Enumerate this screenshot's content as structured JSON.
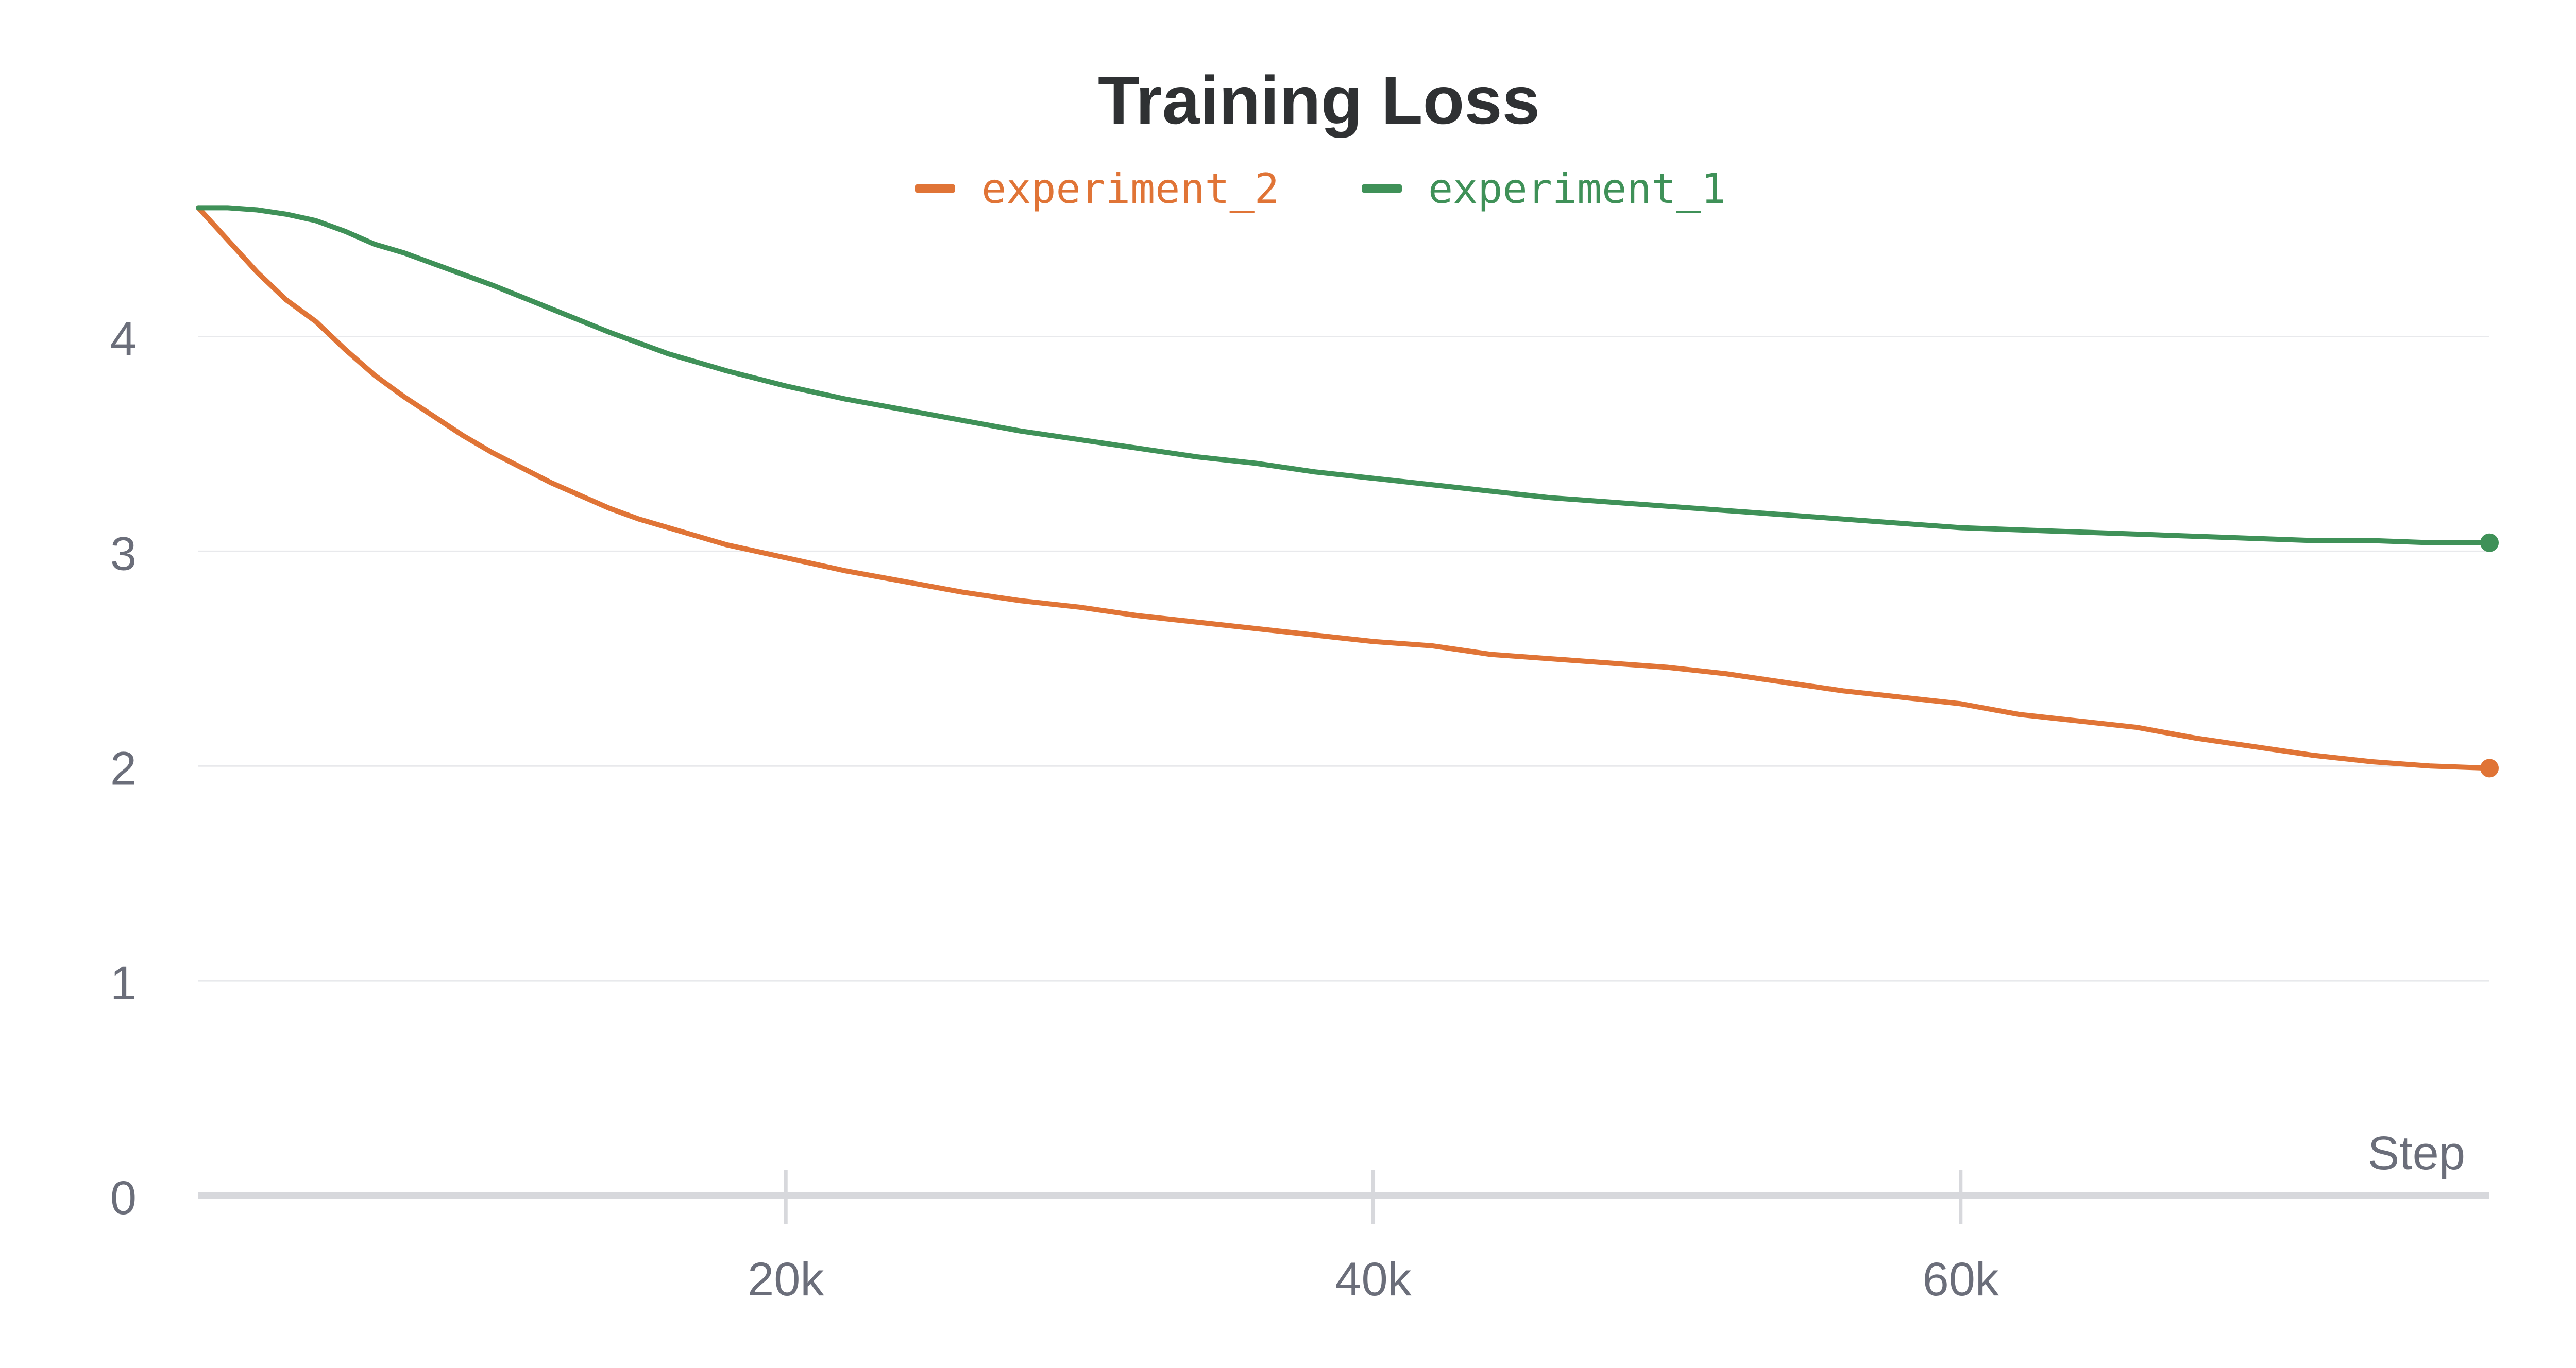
{
  "chart_data": {
    "type": "line",
    "title": "Training Loss",
    "xlabel": "Step",
    "ylabel": "",
    "xlim": [
      0,
      78000
    ],
    "ylim": [
      0,
      4.8
    ],
    "x_ticks": [
      20000,
      40000,
      60000
    ],
    "x_tick_labels": [
      "20k",
      "40k",
      "60k"
    ],
    "y_ticks": [
      0,
      1,
      2,
      3,
      4
    ],
    "y_tick_labels": [
      "0",
      "1",
      "2",
      "3",
      "4"
    ],
    "grid": true,
    "legend_position": "top-center",
    "series": [
      {
        "name": "experiment_2",
        "color": "#e07436",
        "x": [
          0,
          1000,
          2000,
          3000,
          4000,
          5000,
          6000,
          7000,
          8000,
          9000,
          10000,
          11000,
          12000,
          13000,
          14000,
          15000,
          16000,
          18000,
          20000,
          22000,
          24000,
          26000,
          28000,
          30000,
          32000,
          34000,
          36000,
          38000,
          40000,
          42000,
          44000,
          46000,
          48000,
          50000,
          52000,
          54000,
          56000,
          58000,
          60000,
          62000,
          64000,
          66000,
          68000,
          70000,
          72000,
          74000,
          76000,
          78000
        ],
        "y": [
          4.6,
          4.45,
          4.3,
          4.17,
          4.07,
          3.94,
          3.82,
          3.72,
          3.63,
          3.54,
          3.46,
          3.39,
          3.32,
          3.26,
          3.2,
          3.15,
          3.11,
          3.03,
          2.97,
          2.91,
          2.86,
          2.81,
          2.77,
          2.74,
          2.7,
          2.67,
          2.64,
          2.61,
          2.58,
          2.56,
          2.52,
          2.5,
          2.48,
          2.46,
          2.43,
          2.39,
          2.35,
          2.32,
          2.29,
          2.24,
          2.21,
          2.18,
          2.13,
          2.09,
          2.05,
          2.02,
          2.0,
          1.99
        ]
      },
      {
        "name": "experiment_1",
        "color": "#3f9158",
        "x": [
          0,
          1000,
          2000,
          3000,
          4000,
          5000,
          6000,
          7000,
          8000,
          9000,
          10000,
          12000,
          14000,
          16000,
          18000,
          20000,
          22000,
          24000,
          26000,
          28000,
          30000,
          32000,
          34000,
          36000,
          38000,
          40000,
          42000,
          44000,
          46000,
          48000,
          50000,
          52000,
          54000,
          56000,
          58000,
          60000,
          62000,
          64000,
          66000,
          68000,
          70000,
          72000,
          74000,
          76000,
          78000
        ],
        "y": [
          4.6,
          4.6,
          4.59,
          4.57,
          4.54,
          4.49,
          4.43,
          4.39,
          4.34,
          4.29,
          4.24,
          4.13,
          4.02,
          3.92,
          3.84,
          3.77,
          3.71,
          3.66,
          3.61,
          3.56,
          3.52,
          3.48,
          3.44,
          3.41,
          3.37,
          3.34,
          3.31,
          3.28,
          3.25,
          3.23,
          3.21,
          3.19,
          3.17,
          3.15,
          3.13,
          3.11,
          3.1,
          3.09,
          3.08,
          3.07,
          3.06,
          3.05,
          3.05,
          3.04,
          3.04
        ]
      }
    ]
  },
  "colors": {
    "grid": "#e8e9ec",
    "axis": "#d7d8dc",
    "text": "#6b6e7a",
    "title": "#2f3133"
  }
}
